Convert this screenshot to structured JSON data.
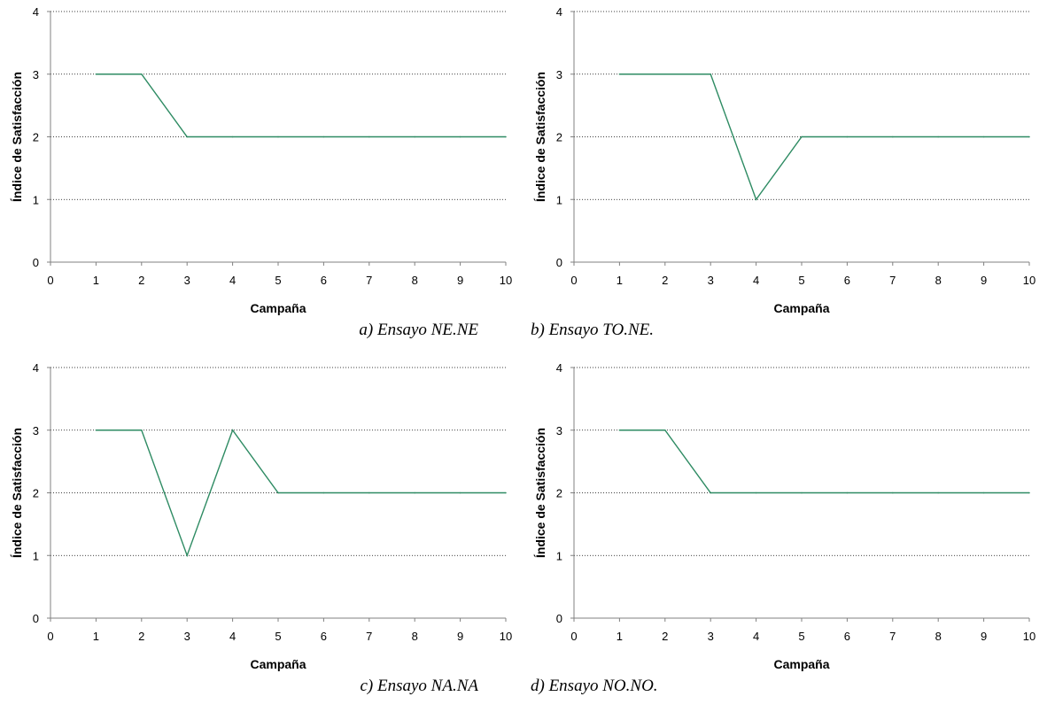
{
  "chart_data": [
    {
      "type": "line",
      "caption": "a) Ensayo NE.NE",
      "xlabel": "Campaña",
      "ylabel": "Índice de Satisfacción",
      "xlim": [
        0,
        10
      ],
      "ylim": [
        0,
        4
      ],
      "xticks": [
        "0",
        "1",
        "2",
        "3",
        "4",
        "5",
        "6",
        "7",
        "8",
        "9",
        "10"
      ],
      "yticks": [
        "0",
        "1",
        "2",
        "3",
        "4"
      ],
      "grid": "horizontal dotted",
      "x": [
        1,
        2,
        3,
        4,
        5,
        6,
        7,
        8,
        9,
        10
      ],
      "series": [
        {
          "values": [
            3,
            3,
            2,
            2,
            2,
            2,
            2,
            2,
            2,
            2
          ],
          "color": "#2e8b63"
        }
      ]
    },
    {
      "type": "line",
      "caption": "b) Ensayo TO.NE.",
      "xlabel": "Campaña",
      "ylabel": "Índice de Satisfacción",
      "xlim": [
        0,
        10
      ],
      "ylim": [
        0,
        4
      ],
      "xticks": [
        "0",
        "1",
        "2",
        "3",
        "4",
        "5",
        "6",
        "7",
        "8",
        "9",
        "10"
      ],
      "yticks": [
        "0",
        "1",
        "2",
        "3",
        "4"
      ],
      "grid": "horizontal dotted",
      "x": [
        1,
        2,
        3,
        4,
        5,
        6,
        7,
        8,
        9,
        10
      ],
      "series": [
        {
          "values": [
            3,
            3,
            3,
            1,
            2,
            2,
            2,
            2,
            2,
            2
          ],
          "color": "#2e8b63"
        }
      ]
    },
    {
      "type": "line",
      "caption": "c) Ensayo NA.NA",
      "xlabel": "Campaña",
      "ylabel": "Índice de Satisfacción",
      "xlim": [
        0,
        10
      ],
      "ylim": [
        0,
        4
      ],
      "xticks": [
        "0",
        "1",
        "2",
        "3",
        "4",
        "5",
        "6",
        "7",
        "8",
        "9",
        "10"
      ],
      "yticks": [
        "0",
        "1",
        "2",
        "3",
        "4"
      ],
      "grid": "horizontal dotted",
      "x": [
        1,
        2,
        3,
        4,
        5,
        6,
        7,
        8,
        9,
        10
      ],
      "series": [
        {
          "values": [
            3,
            3,
            1,
            3,
            2,
            2,
            2,
            2,
            2,
            2
          ],
          "color": "#2e8b63"
        }
      ]
    },
    {
      "type": "line",
      "caption": "d) Ensayo NO.NO.",
      "xlabel": "Campaña",
      "ylabel": "Índice de Satisfacción",
      "xlim": [
        0,
        10
      ],
      "ylim": [
        0,
        4
      ],
      "xticks": [
        "0",
        "1",
        "2",
        "3",
        "4",
        "5",
        "6",
        "7",
        "8",
        "9",
        "10"
      ],
      "yticks": [
        "0",
        "1",
        "2",
        "3",
        "4"
      ],
      "grid": "horizontal dotted",
      "x": [
        1,
        2,
        3,
        4,
        5,
        6,
        7,
        8,
        9,
        10
      ],
      "series": [
        {
          "values": [
            3,
            3,
            2,
            2,
            2,
            2,
            2,
            2,
            2,
            2
          ],
          "color": "#2e8b63"
        }
      ]
    }
  ]
}
